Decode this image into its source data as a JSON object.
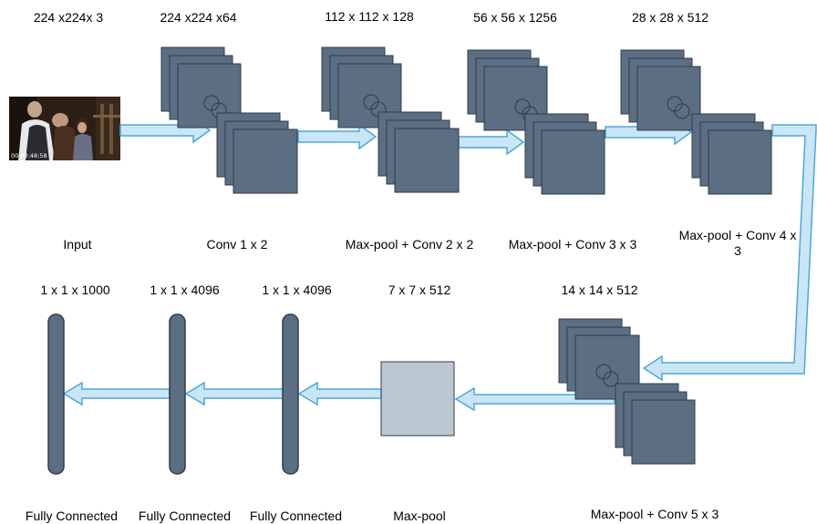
{
  "stages": [
    {
      "dims": "224 x224x 3",
      "caption": "Input"
    },
    {
      "dims": "224 x224 x64",
      "caption": "Conv 1 x 2"
    },
    {
      "dims": "112 x 112 x 128",
      "caption": "Max-pool + Conv 2 x 2"
    },
    {
      "dims": "56 x 56 x 1256",
      "caption": "Max-pool + Conv 3 x 3"
    },
    {
      "dims": "28 x 28 x 512",
      "caption": "Max-pool + Conv 4 x 3"
    },
    {
      "dims": "14 x 14 x 512",
      "caption": "Max-pool + Conv 5 x 3"
    },
    {
      "dims": "7 x 7 x 512",
      "caption": "Max-pool"
    },
    {
      "dims": "1 x 1 x 4096",
      "caption": "Fully Connected"
    },
    {
      "dims": "1 x 1 x 4096",
      "caption": "Fully Connected"
    },
    {
      "dims": "1 x 1 x 1000",
      "caption": "Fully Connected"
    }
  ],
  "input_image": {
    "timestamp": "00:02:48:58"
  },
  "colors": {
    "block": "#5b6e82",
    "block_edge": "#2f3c4a",
    "pool_block": "#bcc7d4",
    "arrow_fill": "#c9e6f7",
    "arrow_edge": "#4ea7d8"
  }
}
